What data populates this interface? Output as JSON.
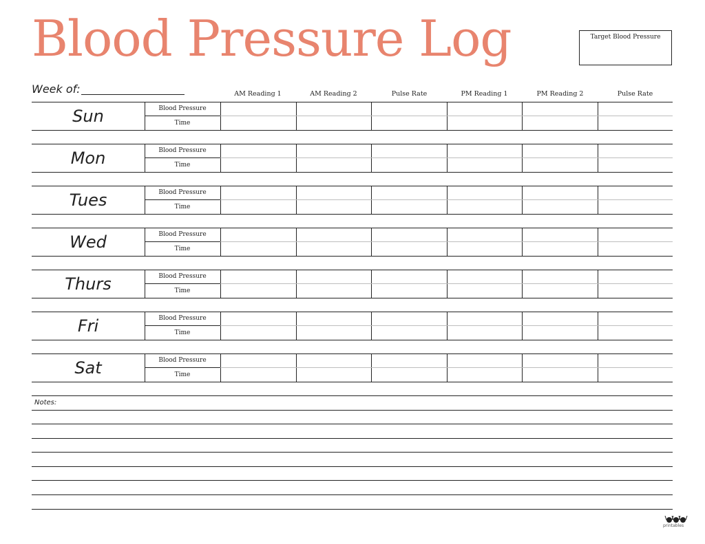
{
  "title": "Blood Pressure Log",
  "target_box": {
    "label": "Target Blood Pressure"
  },
  "week_of_label": "Week of:",
  "columns": [
    "AM Reading 1",
    "AM Reading 2",
    "Pulse Rate",
    "PM Reading 1",
    "PM Reading 2",
    "Pulse Rate"
  ],
  "row_labels": {
    "bp": "Blood Pressure",
    "time": "Time"
  },
  "days": [
    "Sun",
    "Mon",
    "Tues",
    "Wed",
    "Thurs",
    "Fri",
    "Sat"
  ],
  "notes_label": "Notes:",
  "logo_text": "printables",
  "colors": {
    "title": "#e8846e",
    "lines": "#222222",
    "grid_light": "#bdbdbd"
  }
}
